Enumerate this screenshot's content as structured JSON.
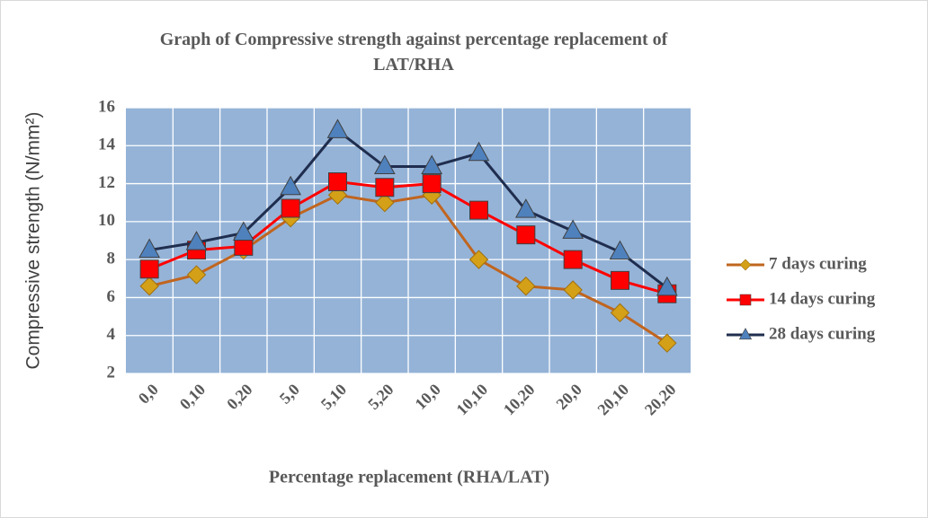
{
  "chart_data": {
    "type": "line",
    "title": "Graph of Compressive strength against percentage replacement of LAT/RHA",
    "x_label": "Percentage replacement (RHA/LAT)",
    "y_label": "Compressive strength (N/mm²)",
    "categories": [
      "0,0",
      "0,10",
      "0,20",
      "5,0",
      "5,10",
      "5,20",
      "10,0",
      "10,10",
      "10,20",
      "20,0",
      "20,10",
      "20,20"
    ],
    "series": [
      {
        "name": "7 days curing",
        "color": "#c0651f",
        "marker": "diamond",
        "marker_color": "#d4a017",
        "values": [
          6.6,
          7.2,
          8.5,
          10.2,
          11.4,
          11.0,
          11.4,
          8.0,
          6.6,
          6.4,
          5.2,
          3.6
        ]
      },
      {
        "name": "14 days curing",
        "color": "#ff0000",
        "marker": "square",
        "marker_color": "#ff0000",
        "values": [
          7.5,
          8.5,
          8.7,
          10.7,
          12.1,
          11.8,
          12.0,
          10.6,
          9.3,
          8.0,
          6.9,
          6.2
        ]
      },
      {
        "name": "28 days curing",
        "color": "#1f2d4e",
        "marker": "triangle",
        "marker_color": "#4f81bd",
        "values": [
          8.5,
          8.9,
          9.4,
          11.8,
          14.8,
          12.9,
          12.9,
          13.6,
          10.6,
          9.5,
          8.4,
          6.5
        ]
      }
    ],
    "ylim": [
      2,
      16
    ],
    "yticks": [
      2,
      4,
      6,
      8,
      10,
      12,
      14,
      16
    ],
    "grid": true,
    "plot_background": "#95b3d7",
    "legend": "right"
  }
}
